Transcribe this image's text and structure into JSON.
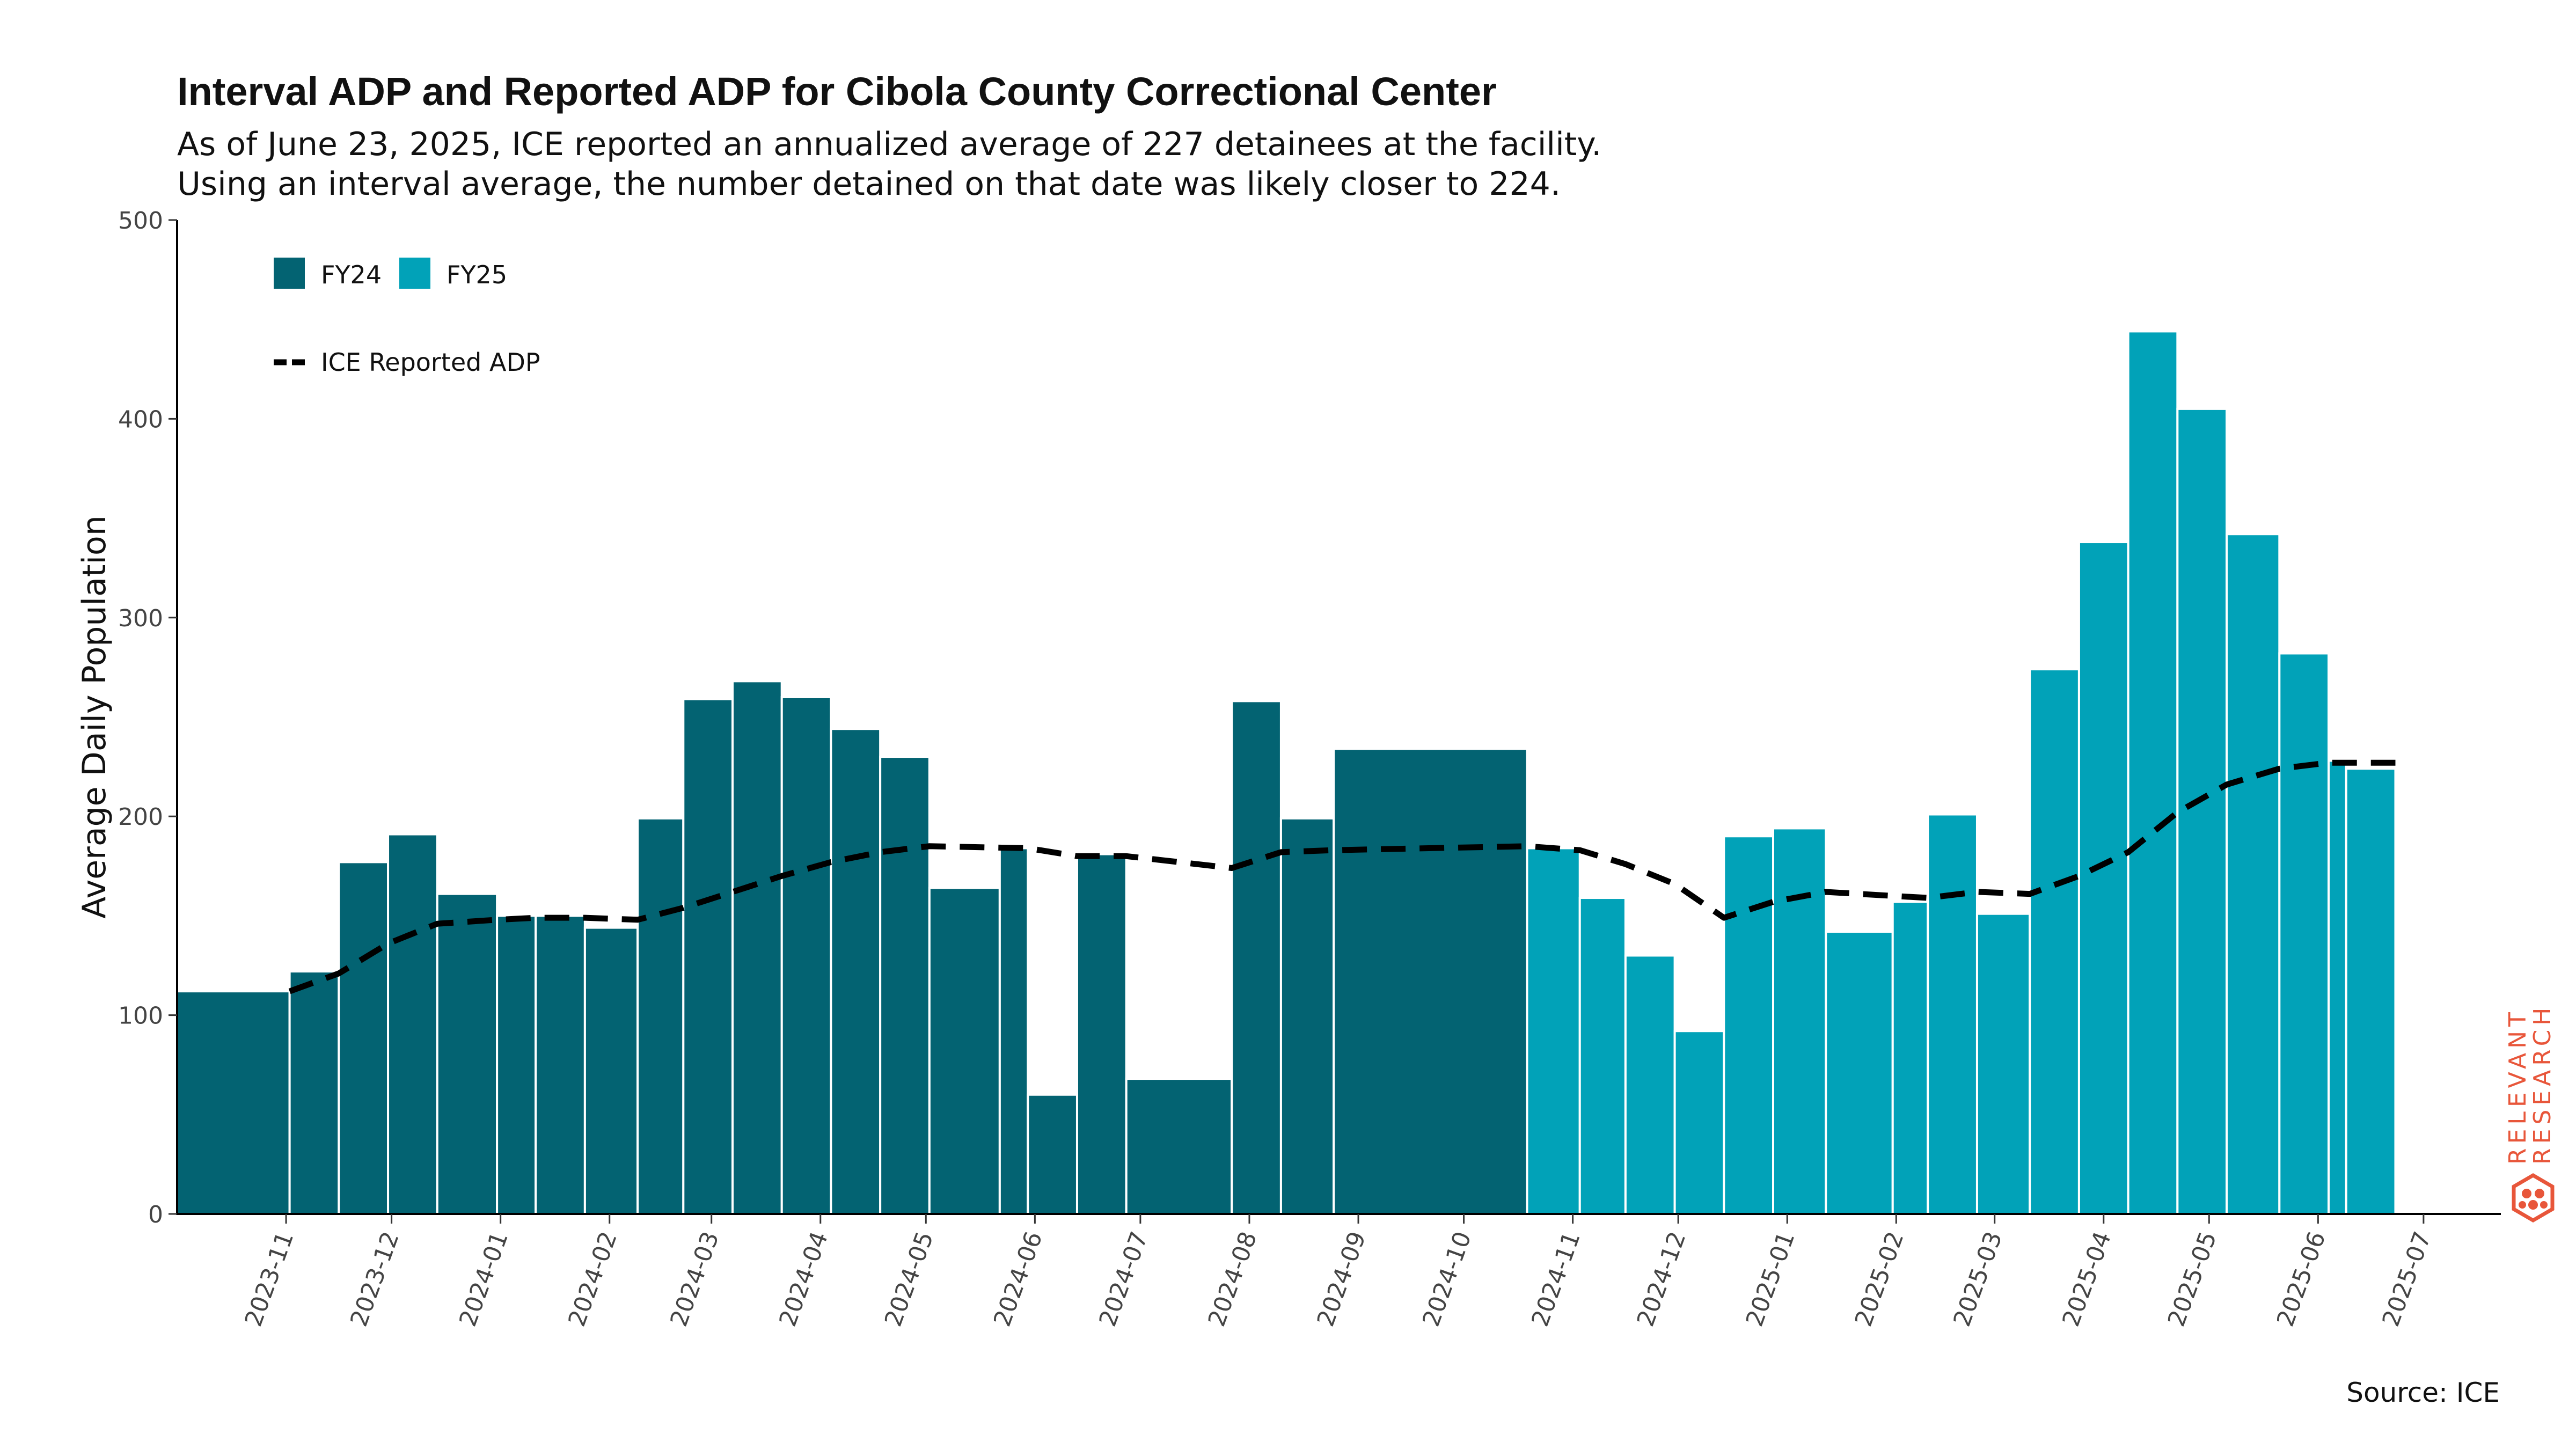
{
  "title": "Interval ADP and Reported ADP for Cibola County Correctional Center",
  "subtitle_line1": "As of June 23, 2025, ICE reported an annualized average of 227 detainees at the facility.",
  "subtitle_line2": "Using an interval average, the number detained on that date was likely closer to 224.",
  "source": "Source: ICE",
  "logo_text": [
    "RELEVANT",
    "RESEARCH"
  ],
  "colors": {
    "fy24": "#036372",
    "fy25": "#01A2B8",
    "line": "#000000",
    "logo": "#E8563A"
  },
  "chart_data": {
    "type": "bar",
    "ylabel": "Average Daily Population",
    "ylim": [
      0,
      500
    ],
    "yticks": [
      0,
      100,
      200,
      300,
      400,
      500
    ],
    "xlim": [
      "2023-10-01",
      "2025-07-23"
    ],
    "xticks": [
      "2023-11",
      "2023-12",
      "2024-01",
      "2024-02",
      "2024-03",
      "2024-04",
      "2024-05",
      "2024-06",
      "2024-07",
      "2024-08",
      "2024-09",
      "2024-10",
      "2024-11",
      "2024-12",
      "2025-01",
      "2025-02",
      "2025-03",
      "2025-04",
      "2025-05",
      "2025-06",
      "2025-07"
    ],
    "legend": {
      "position": "top-left",
      "bars": [
        {
          "name": "FY24",
          "color": "#036372"
        },
        {
          "name": "FY25",
          "color": "#01A2B8"
        }
      ],
      "line": {
        "name": "ICE Reported ADP",
        "style": "dashed"
      }
    },
    "bars": [
      {
        "start": "2023-10-01",
        "end": "2023-11-02",
        "value": 112,
        "fy": "FY24"
      },
      {
        "start": "2023-11-02",
        "end": "2023-11-16",
        "value": 122,
        "fy": "FY24"
      },
      {
        "start": "2023-11-16",
        "end": "2023-11-30",
        "value": 177,
        "fy": "FY24"
      },
      {
        "start": "2023-11-30",
        "end": "2023-12-14",
        "value": 191,
        "fy": "FY24"
      },
      {
        "start": "2023-12-14",
        "end": "2023-12-31",
        "value": 161,
        "fy": "FY24"
      },
      {
        "start": "2023-12-31",
        "end": "2024-01-11",
        "value": 150,
        "fy": "FY24"
      },
      {
        "start": "2024-01-11",
        "end": "2024-01-25",
        "value": 150,
        "fy": "FY24"
      },
      {
        "start": "2024-01-25",
        "end": "2024-02-09",
        "value": 144,
        "fy": "FY24"
      },
      {
        "start": "2024-02-09",
        "end": "2024-02-22",
        "value": 199,
        "fy": "FY24"
      },
      {
        "start": "2024-02-22",
        "end": "2024-03-07",
        "value": 259,
        "fy": "FY24"
      },
      {
        "start": "2024-03-07",
        "end": "2024-03-21",
        "value": 268,
        "fy": "FY24"
      },
      {
        "start": "2024-03-21",
        "end": "2024-04-04",
        "value": 260,
        "fy": "FY24"
      },
      {
        "start": "2024-04-04",
        "end": "2024-04-18",
        "value": 244,
        "fy": "FY24"
      },
      {
        "start": "2024-04-18",
        "end": "2024-05-02",
        "value": 230,
        "fy": "FY24"
      },
      {
        "start": "2024-05-02",
        "end": "2024-05-22",
        "value": 164,
        "fy": "FY24"
      },
      {
        "start": "2024-05-22",
        "end": "2024-05-30",
        "value": 184,
        "fy": "FY24"
      },
      {
        "start": "2024-05-30",
        "end": "2024-06-13",
        "value": 60,
        "fy": "FY24"
      },
      {
        "start": "2024-06-13",
        "end": "2024-06-27",
        "value": 181,
        "fy": "FY24"
      },
      {
        "start": "2024-06-27",
        "end": "2024-07-27",
        "value": 68,
        "fy": "FY24"
      },
      {
        "start": "2024-07-27",
        "end": "2024-08-10",
        "value": 258,
        "fy": "FY24"
      },
      {
        "start": "2024-08-10",
        "end": "2024-08-25",
        "value": 199,
        "fy": "FY24"
      },
      {
        "start": "2024-08-25",
        "end": "2024-10-19",
        "value": 234,
        "fy": "FY24"
      },
      {
        "start": "2024-10-19",
        "end": "2024-11-03",
        "value": 184,
        "fy": "FY25"
      },
      {
        "start": "2024-11-03",
        "end": "2024-11-16",
        "value": 159,
        "fy": "FY25"
      },
      {
        "start": "2024-11-16",
        "end": "2024-11-30",
        "value": 130,
        "fy": "FY25"
      },
      {
        "start": "2024-11-30",
        "end": "2024-12-14",
        "value": 92,
        "fy": "FY25"
      },
      {
        "start": "2024-12-14",
        "end": "2024-12-28",
        "value": 190,
        "fy": "FY25"
      },
      {
        "start": "2024-12-28",
        "end": "2025-01-12",
        "value": 194,
        "fy": "FY25"
      },
      {
        "start": "2025-01-12",
        "end": "2025-01-31",
        "value": 142,
        "fy": "FY25"
      },
      {
        "start": "2025-01-31",
        "end": "2025-02-10",
        "value": 157,
        "fy": "FY25"
      },
      {
        "start": "2025-02-10",
        "end": "2025-02-24",
        "value": 201,
        "fy": "FY25"
      },
      {
        "start": "2025-02-24",
        "end": "2025-03-11",
        "value": 151,
        "fy": "FY25"
      },
      {
        "start": "2025-03-11",
        "end": "2025-03-25",
        "value": 274,
        "fy": "FY25"
      },
      {
        "start": "2025-03-25",
        "end": "2025-04-08",
        "value": 338,
        "fy": "FY25"
      },
      {
        "start": "2025-04-08",
        "end": "2025-04-22",
        "value": 444,
        "fy": "FY25"
      },
      {
        "start": "2025-04-22",
        "end": "2025-05-06",
        "value": 405,
        "fy": "FY25"
      },
      {
        "start": "2025-05-06",
        "end": "2025-05-21",
        "value": 342,
        "fy": "FY25"
      },
      {
        "start": "2025-05-21",
        "end": "2025-06-04",
        "value": 282,
        "fy": "FY25"
      },
      {
        "start": "2025-06-04",
        "end": "2025-06-09",
        "value": 228,
        "fy": "FY25"
      },
      {
        "start": "2025-06-09",
        "end": "2025-06-23",
        "value": 224,
        "fy": "FY25"
      }
    ],
    "line": {
      "name": "ICE Reported ADP",
      "points": [
        {
          "x": "2023-11-02",
          "y": 112
        },
        {
          "x": "2023-11-16",
          "y": 121
        },
        {
          "x": "2023-11-30",
          "y": 136
        },
        {
          "x": "2023-12-14",
          "y": 146
        },
        {
          "x": "2023-12-31",
          "y": 148
        },
        {
          "x": "2024-01-11",
          "y": 149
        },
        {
          "x": "2024-01-25",
          "y": 149
        },
        {
          "x": "2024-02-09",
          "y": 148
        },
        {
          "x": "2024-02-22",
          "y": 154
        },
        {
          "x": "2024-03-07",
          "y": 162
        },
        {
          "x": "2024-03-21",
          "y": 170
        },
        {
          "x": "2024-04-04",
          "y": 177
        },
        {
          "x": "2024-04-18",
          "y": 182
        },
        {
          "x": "2024-05-02",
          "y": 185
        },
        {
          "x": "2024-05-30",
          "y": 184
        },
        {
          "x": "2024-06-13",
          "y": 180
        },
        {
          "x": "2024-06-27",
          "y": 180
        },
        {
          "x": "2024-07-27",
          "y": 174
        },
        {
          "x": "2024-08-10",
          "y": 182
        },
        {
          "x": "2024-08-25",
          "y": 183
        },
        {
          "x": "2024-10-19",
          "y": 185
        },
        {
          "x": "2024-11-03",
          "y": 183
        },
        {
          "x": "2024-11-16",
          "y": 176
        },
        {
          "x": "2024-11-30",
          "y": 166
        },
        {
          "x": "2024-12-14",
          "y": 149
        },
        {
          "x": "2024-12-28",
          "y": 157
        },
        {
          "x": "2025-01-12",
          "y": 162
        },
        {
          "x": "2025-01-31",
          "y": 160
        },
        {
          "x": "2025-02-10",
          "y": 159
        },
        {
          "x": "2025-02-24",
          "y": 162
        },
        {
          "x": "2025-03-11",
          "y": 161
        },
        {
          "x": "2025-03-25",
          "y": 170
        },
        {
          "x": "2025-04-08",
          "y": 182
        },
        {
          "x": "2025-04-22",
          "y": 202
        },
        {
          "x": "2025-05-06",
          "y": 216
        },
        {
          "x": "2025-05-21",
          "y": 224
        },
        {
          "x": "2025-06-04",
          "y": 227
        },
        {
          "x": "2025-06-09",
          "y": 227
        },
        {
          "x": "2025-06-23",
          "y": 227
        }
      ]
    }
  }
}
